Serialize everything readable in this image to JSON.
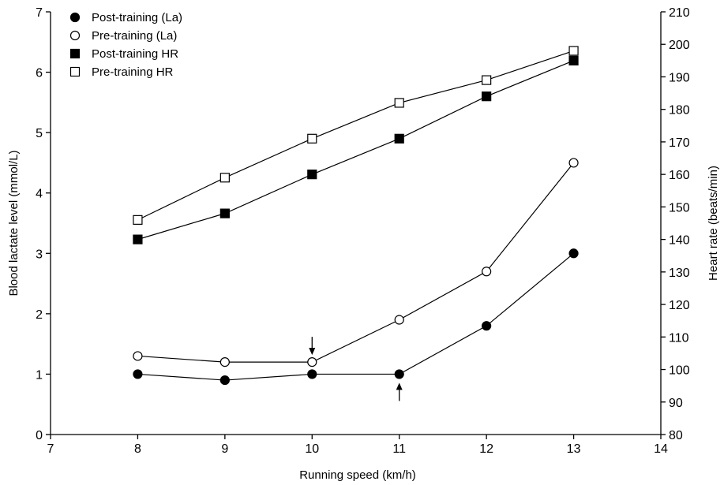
{
  "chart_data": {
    "type": "line",
    "xlabel": "Running speed (km/h)",
    "ylabel": "Blood lactate level (mmol/L)",
    "y2label": "Heart rate (beats/min)",
    "xlim": [
      7,
      14
    ],
    "ylim": [
      0,
      7
    ],
    "y2lim": [
      80,
      210
    ],
    "xticks": [
      7,
      8,
      9,
      10,
      11,
      12,
      13,
      14
    ],
    "yticks": [
      0,
      1,
      2,
      3,
      4,
      5,
      6,
      7
    ],
    "y2ticks": [
      80,
      90,
      100,
      110,
      120,
      130,
      140,
      150,
      160,
      170,
      180,
      190,
      200,
      210
    ],
    "grid": false,
    "legend_position": "top-left",
    "series": [
      {
        "name": "Post-training (La)",
        "axis": "left",
        "marker": "circle",
        "filled": true,
        "x": [
          8,
          9,
          10,
          11,
          12,
          13
        ],
        "values": [
          1.0,
          0.9,
          1.0,
          1.0,
          1.8,
          3.0
        ]
      },
      {
        "name": "Pre-training (La)",
        "axis": "left",
        "marker": "circle",
        "filled": false,
        "x": [
          8,
          9,
          10,
          11,
          12,
          13
        ],
        "values": [
          1.3,
          1.2,
          1.2,
          1.9,
          2.7,
          4.5
        ]
      },
      {
        "name": "Post-training HR",
        "axis": "right",
        "marker": "square",
        "filled": true,
        "x": [
          8,
          9,
          10,
          11,
          12,
          13
        ],
        "values": [
          140,
          148,
          160,
          171,
          184,
          195
        ]
      },
      {
        "name": "Pre-training HR",
        "axis": "right",
        "marker": "square",
        "filled": false,
        "x": [
          8,
          9,
          10,
          11,
          12,
          13
        ],
        "values": [
          146,
          159,
          171,
          182,
          189,
          198
        ]
      }
    ],
    "annotations": [
      {
        "type": "arrow-down",
        "x": 10,
        "series": "Pre-training (La)"
      },
      {
        "type": "arrow-up",
        "x": 11,
        "series": "Post-training (La)"
      }
    ]
  }
}
